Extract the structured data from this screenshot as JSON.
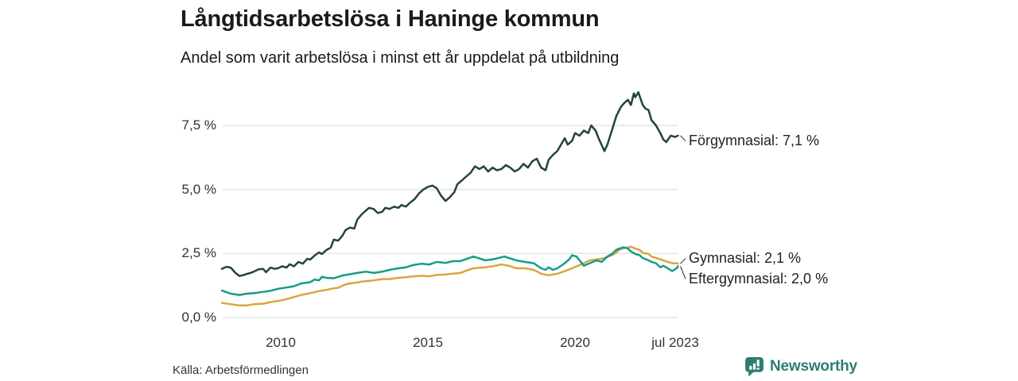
{
  "header": {
    "title": "Långtidsarbetslösa i Haninge kommun",
    "subtitle": "Andel som varit arbetslösa i minst ett år uppdelat på utbildning"
  },
  "footer": {
    "source": "Källa: Arbetsförmedlingen",
    "brand": "Newsworthy",
    "brand_color": "#2c7d72"
  },
  "chart_data": {
    "type": "line",
    "title": "Långtidsarbetslösa i Haninge kommun",
    "subtitle": "Andel som varit arbetslösa i minst ett år uppdelat på utbildning",
    "unit": "%",
    "grid": true,
    "grid_color": "#e3e3e3",
    "x_axis": {
      "range": [
        2008.0,
        2023.58
      ],
      "ticks": [
        {
          "label": "2010",
          "year": 2010
        },
        {
          "label": "2015",
          "year": 2015
        },
        {
          "label": "2020",
          "year": 2020
        },
        {
          "label": "jul 2023",
          "year": 2023.5
        }
      ]
    },
    "y_axis": {
      "range": [
        0,
        9.3
      ],
      "ticks": [
        {
          "label": "0,0 %",
          "value": 0
        },
        {
          "label": "2,5 %",
          "value": 2.5
        },
        {
          "label": "5,0 %",
          "value": 5.0
        },
        {
          "label": "7,5 %",
          "value": 7.5
        }
      ]
    },
    "series": [
      {
        "name": "Förgymnasial",
        "end_label": "Förgymnasial: 7,1 %",
        "end_value": 7.1,
        "color": "#234439",
        "points": [
          [
            2008.0,
            1.9
          ],
          [
            2008.15,
            1.98
          ],
          [
            2008.3,
            1.95
          ],
          [
            2008.45,
            1.75
          ],
          [
            2008.6,
            1.62
          ],
          [
            2008.75,
            1.66
          ],
          [
            2008.85,
            1.7
          ],
          [
            2009.0,
            1.75
          ],
          [
            2009.1,
            1.8
          ],
          [
            2009.25,
            1.88
          ],
          [
            2009.4,
            1.9
          ],
          [
            2009.5,
            1.77
          ],
          [
            2009.65,
            1.95
          ],
          [
            2009.8,
            1.9
          ],
          [
            2009.9,
            1.92
          ],
          [
            2010.05,
            2.0
          ],
          [
            2010.2,
            1.95
          ],
          [
            2010.3,
            2.08
          ],
          [
            2010.45,
            2.0
          ],
          [
            2010.6,
            2.17
          ],
          [
            2010.75,
            2.1
          ],
          [
            2010.9,
            2.29
          ],
          [
            2011.0,
            2.26
          ],
          [
            2011.15,
            2.42
          ],
          [
            2011.3,
            2.54
          ],
          [
            2011.4,
            2.48
          ],
          [
            2011.55,
            2.63
          ],
          [
            2011.7,
            2.73
          ],
          [
            2011.8,
            3.04
          ],
          [
            2011.95,
            3.0
          ],
          [
            2012.1,
            3.2
          ],
          [
            2012.2,
            3.41
          ],
          [
            2012.35,
            3.51
          ],
          [
            2012.5,
            3.47
          ],
          [
            2012.6,
            3.82
          ],
          [
            2012.75,
            4.03
          ],
          [
            2012.9,
            4.18
          ],
          [
            2013.0,
            4.28
          ],
          [
            2013.15,
            4.24
          ],
          [
            2013.3,
            4.08
          ],
          [
            2013.45,
            4.13
          ],
          [
            2013.55,
            4.28
          ],
          [
            2013.7,
            4.24
          ],
          [
            2013.85,
            4.33
          ],
          [
            2014.0,
            4.28
          ],
          [
            2014.1,
            4.39
          ],
          [
            2014.25,
            4.33
          ],
          [
            2014.4,
            4.49
          ],
          [
            2014.55,
            4.62
          ],
          [
            2014.7,
            4.85
          ],
          [
            2014.85,
            5.0
          ],
          [
            2015.0,
            5.1
          ],
          [
            2015.15,
            5.15
          ],
          [
            2015.3,
            5.05
          ],
          [
            2015.45,
            4.75
          ],
          [
            2015.6,
            4.55
          ],
          [
            2015.75,
            4.7
          ],
          [
            2015.9,
            4.9
          ],
          [
            2016.0,
            5.2
          ],
          [
            2016.15,
            5.35
          ],
          [
            2016.3,
            5.5
          ],
          [
            2016.45,
            5.65
          ],
          [
            2016.6,
            5.9
          ],
          [
            2016.75,
            5.8
          ],
          [
            2016.9,
            5.9
          ],
          [
            2017.05,
            5.7
          ],
          [
            2017.2,
            5.85
          ],
          [
            2017.35,
            5.75
          ],
          [
            2017.5,
            5.8
          ],
          [
            2017.65,
            5.95
          ],
          [
            2017.8,
            5.85
          ],
          [
            2017.95,
            5.7
          ],
          [
            2018.1,
            5.8
          ],
          [
            2018.25,
            6.0
          ],
          [
            2018.4,
            5.85
          ],
          [
            2018.55,
            6.1
          ],
          [
            2018.7,
            6.2
          ],
          [
            2018.85,
            5.85
          ],
          [
            2019.0,
            5.75
          ],
          [
            2019.1,
            6.15
          ],
          [
            2019.25,
            6.35
          ],
          [
            2019.4,
            6.5
          ],
          [
            2019.55,
            6.8
          ],
          [
            2019.65,
            7.0
          ],
          [
            2019.75,
            6.75
          ],
          [
            2019.9,
            6.9
          ],
          [
            2020.0,
            7.2
          ],
          [
            2020.15,
            7.1
          ],
          [
            2020.3,
            7.3
          ],
          [
            2020.45,
            7.2
          ],
          [
            2020.55,
            7.5
          ],
          [
            2020.7,
            7.3
          ],
          [
            2020.8,
            7.0
          ],
          [
            2020.9,
            6.75
          ],
          [
            2021.0,
            6.5
          ],
          [
            2021.1,
            6.75
          ],
          [
            2021.25,
            7.3
          ],
          [
            2021.4,
            7.85
          ],
          [
            2021.55,
            8.2
          ],
          [
            2021.65,
            8.35
          ],
          [
            2021.8,
            8.5
          ],
          [
            2021.9,
            8.3
          ],
          [
            2022.0,
            8.75
          ],
          [
            2022.05,
            8.6
          ],
          [
            2022.15,
            8.8
          ],
          [
            2022.3,
            8.3
          ],
          [
            2022.4,
            8.15
          ],
          [
            2022.5,
            8.1
          ],
          [
            2022.6,
            7.7
          ],
          [
            2022.75,
            7.5
          ],
          [
            2022.9,
            7.2
          ],
          [
            2023.0,
            6.95
          ],
          [
            2023.1,
            6.85
          ],
          [
            2023.25,
            7.1
          ],
          [
            2023.4,
            7.05
          ],
          [
            2023.5,
            7.1
          ]
        ]
      },
      {
        "name": "Gymnasial",
        "end_label": "Gymnasial: 2,1 %",
        "end_value": 2.1,
        "color": "#daa440",
        "points": [
          [
            2008.0,
            0.57
          ],
          [
            2008.3,
            0.52
          ],
          [
            2008.6,
            0.47
          ],
          [
            2008.85,
            0.47
          ],
          [
            2009.1,
            0.52
          ],
          [
            2009.4,
            0.54
          ],
          [
            2009.65,
            0.6
          ],
          [
            2009.9,
            0.64
          ],
          [
            2010.2,
            0.72
          ],
          [
            2010.45,
            0.8
          ],
          [
            2010.7,
            0.88
          ],
          [
            2011.0,
            0.95
          ],
          [
            2011.3,
            1.03
          ],
          [
            2011.55,
            1.08
          ],
          [
            2011.8,
            1.14
          ],
          [
            2011.95,
            1.16
          ],
          [
            2012.1,
            1.24
          ],
          [
            2012.2,
            1.29
          ],
          [
            2012.35,
            1.33
          ],
          [
            2012.5,
            1.35
          ],
          [
            2012.6,
            1.37
          ],
          [
            2012.75,
            1.4
          ],
          [
            2012.9,
            1.42
          ],
          [
            2013.15,
            1.45
          ],
          [
            2013.45,
            1.5
          ],
          [
            2013.7,
            1.5
          ],
          [
            2014.0,
            1.55
          ],
          [
            2014.25,
            1.57
          ],
          [
            2014.5,
            1.61
          ],
          [
            2014.8,
            1.63
          ],
          [
            2015.05,
            1.61
          ],
          [
            2015.3,
            1.66
          ],
          [
            2015.6,
            1.68
          ],
          [
            2015.85,
            1.71
          ],
          [
            2016.1,
            1.74
          ],
          [
            2016.3,
            1.83
          ],
          [
            2016.55,
            1.92
          ],
          [
            2016.95,
            1.96
          ],
          [
            2017.2,
            2.0
          ],
          [
            2017.5,
            2.07
          ],
          [
            2017.75,
            2.02
          ],
          [
            2018.0,
            1.92
          ],
          [
            2018.3,
            1.92
          ],
          [
            2018.6,
            1.86
          ],
          [
            2018.85,
            1.71
          ],
          [
            2019.1,
            1.65
          ],
          [
            2019.4,
            1.71
          ],
          [
            2019.65,
            1.81
          ],
          [
            2019.9,
            1.92
          ],
          [
            2020.2,
            2.07
          ],
          [
            2020.5,
            2.23
          ],
          [
            2020.75,
            2.27
          ],
          [
            2021.0,
            2.32
          ],
          [
            2021.25,
            2.43
          ],
          [
            2021.4,
            2.53
          ],
          [
            2021.5,
            2.64
          ],
          [
            2021.65,
            2.71
          ],
          [
            2021.8,
            2.74
          ],
          [
            2021.9,
            2.76
          ],
          [
            2022.05,
            2.69
          ],
          [
            2022.2,
            2.64
          ],
          [
            2022.3,
            2.53
          ],
          [
            2022.5,
            2.48
          ],
          [
            2022.6,
            2.38
          ],
          [
            2022.75,
            2.32
          ],
          [
            2022.9,
            2.27
          ],
          [
            2023.0,
            2.23
          ],
          [
            2023.15,
            2.17
          ],
          [
            2023.3,
            2.12
          ],
          [
            2023.45,
            2.12
          ],
          [
            2023.5,
            2.1
          ]
        ]
      },
      {
        "name": "Eftergymnasial",
        "end_label": "Eftergymnasial: 2,0 %",
        "end_value": 2.0,
        "color": "#169c85",
        "points": [
          [
            2008.0,
            1.05
          ],
          [
            2008.3,
            0.93
          ],
          [
            2008.6,
            0.88
          ],
          [
            2008.85,
            0.93
          ],
          [
            2009.1,
            0.95
          ],
          [
            2009.4,
            1.0
          ],
          [
            2009.65,
            1.04
          ],
          [
            2009.9,
            1.12
          ],
          [
            2010.2,
            1.17
          ],
          [
            2010.45,
            1.22
          ],
          [
            2010.7,
            1.33
          ],
          [
            2011.0,
            1.38
          ],
          [
            2011.15,
            1.48
          ],
          [
            2011.3,
            1.45
          ],
          [
            2011.4,
            1.59
          ],
          [
            2011.55,
            1.55
          ],
          [
            2011.8,
            1.53
          ],
          [
            2012.1,
            1.64
          ],
          [
            2012.35,
            1.69
          ],
          [
            2012.6,
            1.74
          ],
          [
            2012.9,
            1.79
          ],
          [
            2013.15,
            1.74
          ],
          [
            2013.45,
            1.79
          ],
          [
            2013.7,
            1.86
          ],
          [
            2014.0,
            1.92
          ],
          [
            2014.25,
            1.96
          ],
          [
            2014.5,
            2.05
          ],
          [
            2014.8,
            2.1
          ],
          [
            2015.05,
            2.07
          ],
          [
            2015.3,
            2.17
          ],
          [
            2015.6,
            2.13
          ],
          [
            2015.85,
            2.2
          ],
          [
            2016.1,
            2.2
          ],
          [
            2016.3,
            2.28
          ],
          [
            2016.55,
            2.38
          ],
          [
            2016.95,
            2.23
          ],
          [
            2017.2,
            2.27
          ],
          [
            2017.6,
            2.38
          ],
          [
            2018.0,
            2.23
          ],
          [
            2018.3,
            2.17
          ],
          [
            2018.6,
            2.12
          ],
          [
            2018.85,
            1.92
          ],
          [
            2019.0,
            1.86
          ],
          [
            2019.1,
            1.96
          ],
          [
            2019.25,
            1.86
          ],
          [
            2019.4,
            1.92
          ],
          [
            2019.65,
            2.12
          ],
          [
            2019.8,
            2.27
          ],
          [
            2019.9,
            2.43
          ],
          [
            2020.05,
            2.38
          ],
          [
            2020.2,
            2.17
          ],
          [
            2020.3,
            2.02
          ],
          [
            2020.5,
            2.12
          ],
          [
            2020.6,
            2.17
          ],
          [
            2020.75,
            2.23
          ],
          [
            2020.9,
            2.17
          ],
          [
            2021.0,
            2.27
          ],
          [
            2021.1,
            2.38
          ],
          [
            2021.25,
            2.48
          ],
          [
            2021.4,
            2.64
          ],
          [
            2021.5,
            2.69
          ],
          [
            2021.65,
            2.74
          ],
          [
            2021.8,
            2.69
          ],
          [
            2021.9,
            2.58
          ],
          [
            2022.05,
            2.48
          ],
          [
            2022.2,
            2.43
          ],
          [
            2022.3,
            2.32
          ],
          [
            2022.5,
            2.23
          ],
          [
            2022.6,
            2.17
          ],
          [
            2022.75,
            2.12
          ],
          [
            2022.9,
            1.96
          ],
          [
            2023.0,
            2.02
          ],
          [
            2023.15,
            1.92
          ],
          [
            2023.3,
            1.81
          ],
          [
            2023.45,
            1.92
          ],
          [
            2023.5,
            2.0
          ]
        ]
      }
    ]
  }
}
